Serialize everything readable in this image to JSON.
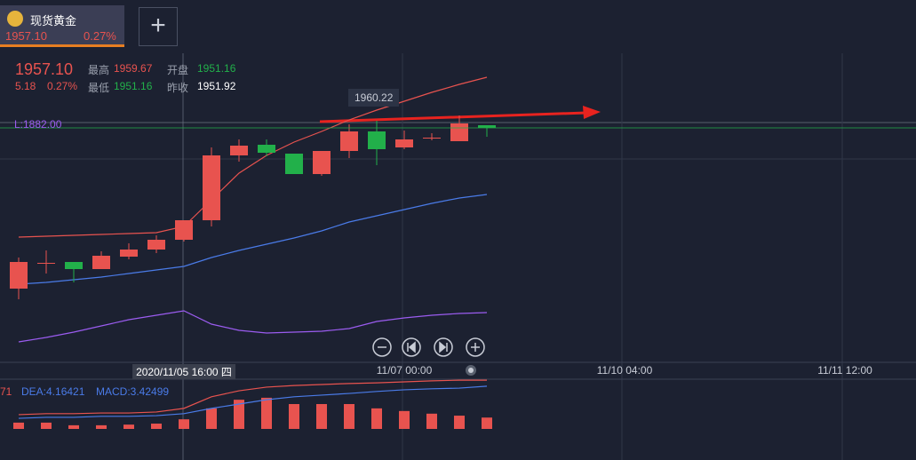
{
  "tab": {
    "name": "现货黄金",
    "price": "1957.10",
    "change": "0.27%"
  },
  "quote": {
    "last": "1957.10",
    "change": "5.18",
    "percent": "0.27%",
    "high_label": "最高",
    "high": "1959.67",
    "open_label": "开盘",
    "open": "1951.16",
    "low_label": "最低",
    "low": "1951.16",
    "prev_label": "昨收",
    "prev": "1951.92"
  },
  "tooltip": "1960.22",
  "lower_band_label": "L:1882.00",
  "chart_data": [
    {
      "type": "candlestick",
      "up_color": "#e8534f",
      "down_color": "#22b04a",
      "ylim": [
        1890.35,
        1976.1
      ],
      "categories": [
        null,
        null,
        null,
        null,
        null,
        null,
        "2020/11/05 16:00 四",
        null,
        null,
        null,
        null,
        null,
        null,
        null,
        "11/07 00:00",
        null,
        null,
        null,
        null,
        null,
        null,
        null,
        "11/10 04:00",
        null,
        null,
        null,
        null,
        null,
        null,
        null,
        "11/11 12:00",
        null,
        null
      ],
      "open": [
        1911.1,
        1918.35,
        1918.6,
        1916.6,
        1920.1,
        1922.1,
        1924.85,
        1930.35,
        1948.6,
        1951.6,
        1949.1,
        1943.35,
        1949.85,
        1955.35,
        1950.85,
        1953.6,
        1952.6,
        1957.1,
        null,
        null,
        null,
        null,
        null,
        null,
        null,
        null,
        null,
        null,
        null,
        null,
        null,
        null,
        null
      ],
      "high": [
        1919.85,
        1921.85,
        1918.6,
        1921.6,
        1923.85,
        1926.1,
        1930.35,
        1950.85,
        1953.1,
        1953.1,
        1949.1,
        1949.85,
        1957.35,
        1958.35,
        1955.6,
        1954.85,
        1959.85,
        1957.1,
        null,
        null,
        null,
        null,
        null,
        null,
        null,
        null,
        null,
        null,
        null,
        null,
        null,
        null,
        null
      ],
      "low": [
        1908.1,
        1915.35,
        1912.85,
        1916.6,
        1919.35,
        1921.1,
        1924.35,
        1928.6,
        1946.85,
        1948.35,
        1943.35,
        1942.85,
        1947.85,
        1945.85,
        1950.35,
        1952.85,
        1952.6,
        1953.85,
        null,
        null,
        null,
        null,
        null,
        null,
        null,
        null,
        null,
        null,
        null,
        null,
        null,
        null,
        null
      ],
      "close": [
        1918.6,
        1918.35,
        1916.6,
        1920.35,
        1922.1,
        1924.85,
        1930.35,
        1948.6,
        1951.35,
        1949.35,
        1943.35,
        1949.85,
        1955.35,
        1950.35,
        1953.1,
        1953.6,
        1957.6,
        1956.35,
        null,
        null,
        null,
        null,
        null,
        null,
        null,
        null,
        null,
        null,
        null,
        null,
        null,
        null,
        null
      ],
      "lines": [
        {
          "color": "#e8534f",
          "values": [
            1925.6,
            1925.85,
            1926.1,
            1926.35,
            1926.6,
            1926.85,
            1928.6,
            1936.1,
            1943.6,
            1948.6,
            1952.35,
            1955.35,
            1958.6,
            1961.35,
            1963.85,
            1966.35,
            1968.6,
            1970.6,
            null,
            null,
            null,
            null,
            null,
            null,
            null,
            null,
            null,
            null,
            null,
            null,
            null,
            null,
            null
          ]
        },
        {
          "color": "#4a7be8",
          "values": [
            1912.35,
            1912.85,
            1913.6,
            1914.35,
            1915.35,
            1916.35,
            1917.35,
            1919.85,
            1921.85,
            1923.6,
            1925.35,
            1927.35,
            1929.85,
            1931.6,
            1933.35,
            1935.1,
            1936.6,
            1937.6,
            null,
            null,
            null,
            null,
            null,
            null,
            null,
            null,
            null,
            null,
            null,
            null,
            null,
            null,
            null
          ]
        },
        {
          "color": "#9b5cf0",
          "values": [
            1896.1,
            1897.35,
            1898.85,
            1900.6,
            1902.35,
            1903.6,
            1904.85,
            1901.1,
            1899.35,
            1898.6,
            1898.85,
            1899.1,
            1899.85,
            1901.85,
            1902.85,
            1903.6,
            1904.1,
            1904.35,
            null,
            null,
            null,
            null,
            null,
            null,
            null,
            null,
            null,
            null,
            null,
            null,
            null,
            null,
            null
          ]
        }
      ]
    },
    {
      "type": "bar",
      "color": "#e8534f",
      "ylim": [
        0,
        15
      ],
      "dif_label": "71",
      "dea_label": "DEA:4.16421",
      "macd_label": "MACD:3.42499",
      "values": [
        1.9,
        1.9,
        1.1,
        1.1,
        1.3,
        1.6,
        2.9,
        6.2,
        8.8,
        9.4,
        7.5,
        7.5,
        7.5,
        6.2,
        5.4,
        4.6,
        4.0,
        3.42499,
        null,
        null,
        null,
        null,
        null,
        null,
        null,
        null,
        null,
        null,
        null,
        null,
        null,
        null,
        null
      ],
      "lines": [
        {
          "color": "#e8534f",
          "values": [
            4.3,
            4.6,
            4.6,
            4.8,
            4.8,
            5.1,
            6.2,
            9.7,
            11.5,
            12.6,
            13.1,
            13.4,
            13.7,
            13.9,
            14.2,
            14.5,
            14.7,
            14.7,
            null,
            null,
            null,
            null,
            null,
            null,
            null,
            null,
            null,
            null,
            null,
            null,
            null,
            null,
            null
          ]
        },
        {
          "color": "#4a7be8",
          "values": [
            3.2,
            3.5,
            3.5,
            3.8,
            3.8,
            4.0,
            4.6,
            6.2,
            7.5,
            8.8,
            9.7,
            10.2,
            10.7,
            11.3,
            11.8,
            12.1,
            12.3,
            12.9,
            null,
            null,
            null,
            null,
            null,
            null,
            null,
            null,
            null,
            null,
            null,
            null,
            null,
            null,
            null
          ]
        }
      ]
    }
  ]
}
